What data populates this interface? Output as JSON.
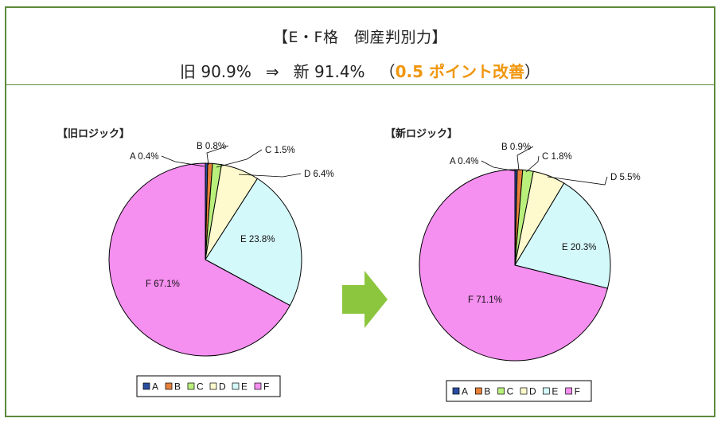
{
  "header": {
    "title": "【E・F格　倒産判別力】",
    "old_text": "旧 90.9%",
    "arrow": "⇒",
    "new_text": "新 91.4%",
    "improve_open": "（",
    "improve": "0.5 ポイント改善",
    "improve_close": "）",
    "highlight_color": "#f0960e",
    "frame_color": "#5d8a3a"
  },
  "transition_arrow": {
    "icon": "right-arrow-icon",
    "color": "#8cc63e"
  },
  "chart_data": [
    {
      "type": "pie",
      "title": "【旧ロジック】",
      "categories": [
        "A",
        "B",
        "C",
        "D",
        "E",
        "F"
      ],
      "values": [
        0.4,
        0.8,
        1.5,
        6.4,
        23.8,
        67.1
      ],
      "labels": [
        "A 0.4%",
        "B 0.8%",
        "C 1.5%",
        "D 6.4%",
        "E 23.8%",
        "F 67.1%"
      ],
      "colors": [
        "#2a4da0",
        "#e8803a",
        "#b9f07c",
        "#fffacd",
        "#d4f9fb",
        "#f58ff0"
      ],
      "legend": "bottom"
    },
    {
      "type": "pie",
      "title": "【新ロジック】",
      "categories": [
        "A",
        "B",
        "C",
        "D",
        "E",
        "F"
      ],
      "values": [
        0.4,
        0.9,
        1.8,
        5.5,
        20.3,
        71.1
      ],
      "labels": [
        "A 0.4%",
        "B 0.9%",
        "C 1.8%",
        "D 5.5%",
        "E 20.3%",
        "F 71.1%"
      ],
      "colors": [
        "#2a4da0",
        "#e8803a",
        "#b9f07c",
        "#fffacd",
        "#d4f9fb",
        "#f58ff0"
      ],
      "legend": "bottom"
    }
  ]
}
